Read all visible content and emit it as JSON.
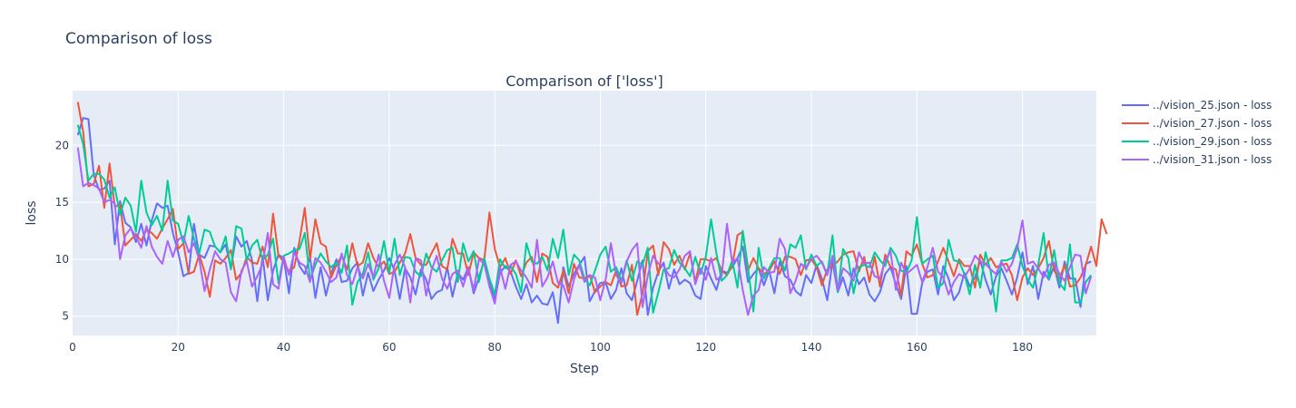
{
  "page": {
    "title": "Comparison of loss"
  },
  "chart_data": {
    "type": "line",
    "title": "Comparison of ['loss']",
    "xlabel": "Step",
    "ylabel": "loss",
    "xlim": [
      0,
      194
    ],
    "ylim": [
      3.3,
      24.8
    ],
    "xticks": [
      0,
      20,
      40,
      60,
      80,
      100,
      120,
      140,
      160,
      180
    ],
    "yticks": [
      5,
      10,
      15,
      20
    ],
    "grid": true,
    "legend_position": "top-right outside",
    "x_start": 1,
    "series": [
      {
        "name": "../vision_25.json - loss",
        "color": "#636efa",
        "values": [
          20.9,
          22.4,
          22.3,
          17.4,
          16.1,
          16.2,
          16.9,
          11.3,
          15.1,
          13.2,
          12.8,
          11.5,
          13.1,
          11.2,
          13.4,
          14.9,
          14.5,
          14.7,
          12.3,
          10.6,
          8.5,
          8.8,
          13.1,
          10.4,
          10.1,
          11.2,
          11.1,
          10.6,
          11.3,
          9.2,
          12.0,
          11.1,
          11.6,
          9.9,
          6.3,
          10.3,
          6.4,
          9.0,
          10.4,
          10.1,
          7.0,
          11.0,
          9.4,
          8.7,
          10.2,
          6.6,
          9.3,
          6.8,
          8.7,
          10.0,
          8.0,
          8.1,
          9.2,
          9.7,
          6.8,
          8.8,
          7.2,
          8.2,
          9.0,
          10.1,
          9.0,
          6.5,
          9.2,
          8.4,
          6.9,
          9.1,
          8.2,
          6.5,
          7.1,
          7.3,
          9.3,
          6.7,
          8.8,
          8.2,
          9.3,
          7.0,
          8.4,
          9.9,
          8.1,
          6.4,
          8.8,
          9.4,
          8.9,
          7.6,
          6.5,
          7.8,
          6.2,
          6.8,
          6.1,
          6.0,
          7.1,
          4.4,
          9.3,
          7.6,
          8.7,
          9.5,
          10.2,
          6.3,
          7.2,
          7.9,
          8.0,
          6.5,
          7.3,
          9.2,
          7.0,
          6.4,
          8.1,
          9.9,
          5.1,
          7.5,
          8.9,
          9.7,
          7.4,
          9.1,
          7.8,
          8.2,
          7.9,
          6.8,
          6.5,
          9.4,
          8.3,
          7.3,
          9.0,
          8.8,
          9.3,
          10.1,
          11.1,
          8.0,
          8.7,
          9.2,
          7.7,
          9.0,
          7.0,
          9.8,
          8.5,
          8.2,
          7.2,
          6.8,
          8.6,
          7.9,
          9.5,
          8.3,
          6.4,
          9.8,
          7.1,
          8.4,
          6.8,
          9.2,
          7.8,
          8.4,
          6.9,
          6.3,
          7.1,
          8.7,
          9.3,
          7.8,
          6.5,
          9.4,
          5.2,
          5.2,
          7.9,
          8.9,
          9.1,
          6.9,
          9.4,
          8.3,
          6.4,
          7.1,
          8.8,
          7.6,
          8.4,
          9.9,
          8.2,
          6.9,
          8.5,
          9.2,
          8.1,
          6.9,
          8.4,
          10.6,
          7.8,
          9.4,
          6.5,
          8.9,
          8.2,
          9.4,
          7.5,
          9.8,
          8.3,
          8.3,
          5.8,
          9.6,
          9.8
        ]
      },
      {
        "name": "../vision_27.json - loss",
        "color": "#ef553b",
        "values": [
          23.8,
          21.2,
          16.4,
          16.6,
          18.2,
          14.5,
          18.4,
          14.6,
          14.8,
          11.2,
          11.7,
          12.2,
          11.6,
          12.6,
          12.3,
          11.8,
          12.7,
          13.5,
          14.4,
          10.9,
          11.4,
          8.7,
          8.9,
          10.4,
          8.9,
          6.7,
          9.9,
          9.6,
          10.1,
          10.8,
          8.2,
          8.8,
          10.2,
          9.7,
          9.6,
          11.1,
          9.3,
          14.0,
          10.3,
          9.8,
          8.9,
          9.3,
          11.6,
          14.5,
          10.0,
          13.5,
          11.4,
          11.1,
          8.4,
          9.5,
          10.3,
          9.1,
          11.4,
          9.4,
          9.7,
          11.4,
          10.1,
          9.3,
          9.8,
          8.7,
          8.9,
          9.7,
          10.5,
          12.2,
          10.1,
          9.5,
          9.5,
          10.5,
          11.4,
          9.4,
          9.1,
          11.8,
          10.5,
          10.5,
          8.6,
          10.6,
          10.1,
          9.9,
          14.1,
          10.9,
          9.3,
          10.1,
          8.7,
          9.9,
          8.5,
          9.7,
          10.2,
          8.0,
          10.5,
          10.2,
          7.9,
          7.5,
          9.0,
          7.0,
          9.6,
          8.4,
          8.3,
          8.6,
          7.1,
          7.6,
          8.0,
          7.7,
          9.0,
          7.6,
          7.7,
          9.5,
          5.1,
          7.0,
          10.7,
          11.2,
          8.6,
          11.5,
          10.9,
          9.5,
          10.3,
          9.1,
          10.5,
          8.0,
          10.0,
          10.0,
          9.8,
          10.1,
          9.0,
          8.6,
          9.4,
          12.1,
          12.4,
          9.0,
          10.1,
          9.2,
          8.7,
          9.0,
          9.8,
          8.7,
          10.2,
          10.2,
          10.0,
          8.6,
          9.9,
          10.0,
          9.3,
          7.7,
          9.1,
          9.4,
          9.8,
          10.4,
          10.6,
          10.7,
          8.9,
          10.2,
          8.0,
          10.2,
          7.6,
          10.4,
          9.3,
          9.1,
          6.8,
          10.7,
          10.3,
          11.3,
          9.6,
          8.4,
          8.6,
          9.8,
          11.0,
          9.8,
          8.5,
          10.0,
          9.4,
          9.4,
          7.5,
          10.4,
          9.5,
          10.1,
          9.3,
          9.5,
          9.6,
          8.6,
          6.4,
          8.4,
          9.2,
          8.6,
          9.2,
          10.1,
          11.6,
          9.0,
          8.3,
          9.5,
          7.6,
          7.7,
          8.4,
          9.5,
          11.1,
          9.4,
          13.5,
          12.2
        ]
      },
      {
        "name": "../vision_29.json - loss",
        "color": "#00cc96",
        "values": [
          21.8,
          20.1,
          16.9,
          17.5,
          17.5,
          17.0,
          15.4,
          16.3,
          13.9,
          15.4,
          14.7,
          12.4,
          16.9,
          14.1,
          13.0,
          13.8,
          12.5,
          16.9,
          13.4,
          13.1,
          11.4,
          13.8,
          11.8,
          10.5,
          12.6,
          12.4,
          11.1,
          10.6,
          12.0,
          9.1,
          12.9,
          12.7,
          9.9,
          11.2,
          11.7,
          9.9,
          10.4,
          11.8,
          7.9,
          10.3,
          10.5,
          10.8,
          10.9,
          12.3,
          8.2,
          9.5,
          10.5,
          9.8,
          9.3,
          9.7,
          8.8,
          11.2,
          6.0,
          8.0,
          8.7,
          10.6,
          8.2,
          9.2,
          11.6,
          8.8,
          11.8,
          8.6,
          10.2,
          10.1,
          8.9,
          8.5,
          10.5,
          9.3,
          8.9,
          9.9,
          10.8,
          11.0,
          8.0,
          11.4,
          9.8,
          10.7,
          8.0,
          10.1,
          8.3,
          6.9,
          10.0,
          9.2,
          9.4,
          8.7,
          7.1,
          11.4,
          9.8,
          9.6,
          10.2,
          9.0,
          11.8,
          10.1,
          12.6,
          8.6,
          10.4,
          9.9,
          8.3,
          7.7,
          9.0,
          10.4,
          11.1,
          8.9,
          9.3,
          8.1,
          9.9,
          8.1,
          9.8,
          9.5,
          11.0,
          5.3,
          7.1,
          9.1,
          9.2,
          10.8,
          9.7,
          9.2,
          8.5,
          10.2,
          8.7,
          10.2,
          13.5,
          10.5,
          8.1,
          8.6,
          9.9,
          7.5,
          12.5,
          9.3,
          5.4,
          11.0,
          8.3,
          9.2,
          10.1,
          10.1,
          9.0,
          11.3,
          11.0,
          12.1,
          9.1,
          10.4,
          9.4,
          9.8,
          8.6,
          12.1,
          7.1,
          10.9,
          10.1,
          7.0,
          9.3,
          9.5,
          9.3,
          10.6,
          9.9,
          9.4,
          11.0,
          10.3,
          9.0,
          8.8,
          9.9,
          13.7,
          9.6,
          10.0,
          10.3,
          7.5,
          7.9,
          11.7,
          9.9,
          9.8,
          8.7,
          6.9,
          9.5,
          7.5,
          10.6,
          8.9,
          5.4,
          9.9,
          9.9,
          10.1,
          11.3,
          9.4,
          8.2,
          7.5,
          9.5,
          12.3,
          8.3,
          10.8,
          7.9,
          7.3,
          11.3,
          6.2,
          6.2,
          8.0,
          8.6
        ]
      },
      {
        "name": "../vision_31.json - loss",
        "color": "#ab63fa",
        "values": [
          19.8,
          16.4,
          16.7,
          16.5,
          16.2,
          15.0,
          15.2,
          14.9,
          10.0,
          12.1,
          12.7,
          12.0,
          11.0,
          12.9,
          11.1,
          10.2,
          9.6,
          11.6,
          10.2,
          11.7,
          12.0,
          10.6,
          11.4,
          10.0,
          7.2,
          9.1,
          10.7,
          10.0,
          9.7,
          7.1,
          6.3,
          9.0,
          9.8,
          7.6,
          8.5,
          9.6,
          12.3,
          7.8,
          7.4,
          10.2,
          8.6,
          10.6,
          9.7,
          9.4,
          8.0,
          10.1,
          9.7,
          8.9,
          8.0,
          8.4,
          10.5,
          8.6,
          7.8,
          9.3,
          8.3,
          9.6,
          8.4,
          10.4,
          8.1,
          6.6,
          9.5,
          10.4,
          9.3,
          6.2,
          10.1,
          9.9,
          6.8,
          9.0,
          10.3,
          8.3,
          7.4,
          8.7,
          9.0,
          7.6,
          9.2,
          7.3,
          10.0,
          9.6,
          7.6,
          6.1,
          9.3,
          7.4,
          9.5,
          9.8,
          9.0,
          8.4,
          7.5,
          11.7,
          7.6,
          8.4,
          9.8,
          7.9,
          7.7,
          6.2,
          8.2,
          9.5,
          8.0,
          8.6,
          8.4,
          6.4,
          8.2,
          11.4,
          8.6,
          7.9,
          9.8,
          10.8,
          11.4,
          5.8,
          8.6,
          10.3,
          9.6,
          9.4,
          8.6,
          8.4,
          9.1,
          10.3,
          10.7,
          7.8,
          9.2,
          8.2,
          10.1,
          8.2,
          8.5,
          13.1,
          9.7,
          10.1,
          7.3,
          5.1,
          6.8,
          7.3,
          9.3,
          8.8,
          8.9,
          11.8,
          10.9,
          7.0,
          8.1,
          9.6,
          9.2,
          10.0,
          10.3,
          9.7,
          8.6,
          10.3,
          7.3,
          9.2,
          8.8,
          8.1,
          10.6,
          9.6,
          9.7,
          8.5,
          8.3,
          9.9,
          10.7,
          7.3,
          9.7,
          8.7,
          9.1,
          9.5,
          8.0,
          9.3,
          11.0,
          8.9,
          8.4,
          6.9,
          8.0,
          8.7,
          8.4,
          9.2,
          10.3,
          9.8,
          9.6,
          9.1,
          8.7,
          9.8,
          8.9,
          9.6,
          11.0,
          13.4,
          9.6,
          9.8,
          9.2,
          8.4,
          9.5,
          9.7,
          8.7,
          8.1,
          9.3,
          10.4,
          10.3,
          7.0,
          8.5
        ]
      }
    ]
  }
}
